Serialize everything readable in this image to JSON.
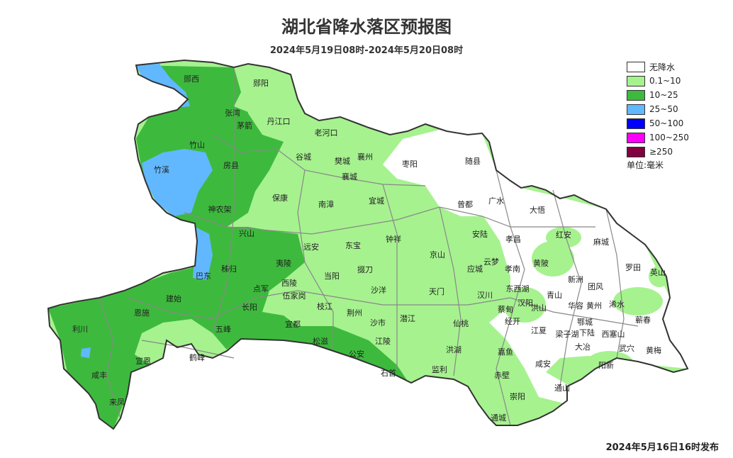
{
  "title": "湖北省降水落区预报图",
  "subtitle": "2024年5月19日08时-2024年5月20日08时",
  "legend": {
    "items": [
      {
        "label": "无降水",
        "color": "#ffffff"
      },
      {
        "label": "0.1~10",
        "color": "#a6f28f"
      },
      {
        "label": "10~25",
        "color": "#3dba3d"
      },
      {
        "label": "25~50",
        "color": "#61b8ff"
      },
      {
        "label": "50~100",
        "color": "#0000ff"
      },
      {
        "label": "100~250",
        "color": "#fa00fa"
      },
      {
        "label": "≥250",
        "color": "#800040"
      }
    ],
    "unit": "单位:毫米"
  },
  "footer": "2024年5月16日16时发布",
  "places": [
    "郧西",
    "郧阳",
    "张湾",
    "茅箭",
    "丹江口",
    "老河口",
    "竹山",
    "竹溪",
    "房县",
    "谷城",
    "樊城",
    "襄州",
    "襄城",
    "枣阳",
    "随县",
    "保康",
    "南漳",
    "宜城",
    "神农架",
    "曾都",
    "广水",
    "大悟",
    "兴山",
    "远安",
    "东宝",
    "钟祥",
    "安陆",
    "孝昌",
    "红安",
    "麻城",
    "京山",
    "云梦",
    "秭归",
    "夷陵",
    "掇刀",
    "当阳",
    "应城",
    "孝南",
    "黄陂",
    "罗田",
    "英山",
    "巴东",
    "新洲",
    "建始",
    "点军",
    "西陵",
    "伍家岗",
    "沙洋",
    "天门",
    "汉川",
    "东西湖",
    "团风",
    "恩施",
    "长阳",
    "枝江",
    "荆州",
    "潜江",
    "汉阳",
    "青山",
    "洪山",
    "华容",
    "黄州",
    "浠水",
    "蔡甸",
    "蕲春",
    "利川",
    "五峰",
    "宜都",
    "沙市",
    "仙桃",
    "经开",
    "江夏",
    "梁子湖",
    "鄂城",
    "下陆",
    "西塞山",
    "大冶",
    "松滋",
    "江陵",
    "武穴",
    "黄梅",
    "宣恩",
    "鹤峰",
    "公安",
    "洪湖",
    "嘉鱼",
    "咸安",
    "阳新",
    "咸丰",
    "石首",
    "监利",
    "赤壁",
    "通山",
    "崇阳",
    "来凤",
    "通城"
  ]
}
